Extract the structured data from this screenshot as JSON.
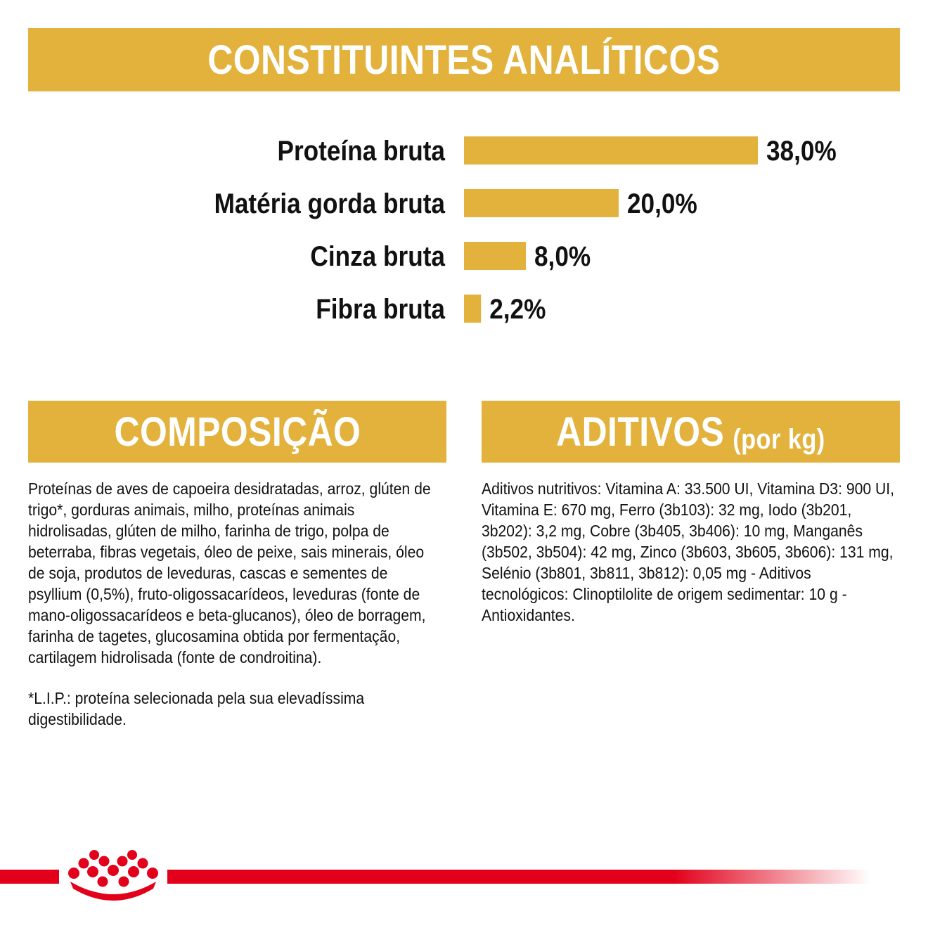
{
  "headers": {
    "analiticos": "CONSTITUINTES ANALÍTICOS",
    "composicao": "COMPOSIÇÃO",
    "aditivos_main": "ADITIVOS",
    "aditivos_suffix": "(por kg)"
  },
  "chart_data": {
    "type": "bar",
    "orientation": "horizontal",
    "title": "CONSTITUINTES ANALÍTICOS",
    "categories": [
      "Proteína bruta",
      "Matéria gorda bruta",
      "Cinza bruta",
      "Fibra bruta"
    ],
    "values": [
      38.0,
      20.0,
      8.0,
      2.2
    ],
    "value_labels": [
      "38,0%",
      "20,0%",
      "8,0%",
      "2,2%"
    ],
    "unit": "%",
    "xlim": [
      0,
      38
    ],
    "grid": false,
    "legend": "none",
    "bar_color": "#e3b23c"
  },
  "composicao": {
    "text": "Proteínas de aves de capoeira desidratadas, arroz, glúten de trigo*, gorduras animais, milho, proteínas animais hidrolisadas, glúten de milho, farinha de trigo, polpa de beterraba, fibras vegetais, óleo de peixe, sais minerais, óleo de soja, produtos de leveduras, cascas e sementes de psyllium (0,5%), fruto-oligossacarídeos, leveduras (fonte de mano-oligossacarídeos e beta-glucanos), óleo de borragem, farinha de tagetes, glucosamina obtida por fermentação, cartilagem hidrolisada (fonte de condroitina).",
    "note": "*L.I.P.: proteína selecionada pela sua elevadíssima digestibilidade."
  },
  "aditivos": {
    "text": "Aditivos nutritivos: Vitamina A: 33.500 UI, Vitamina D3: 900 UI, Vitamina E: 670 mg, Ferro (3b103): 32 mg, Iodo (3b201, 3b202): 3,2 mg, Cobre (3b405, 3b406): 10 mg, Manganês (3b502, 3b504): 42 mg, Zinco (3b603, 3b605, 3b606): 131 mg, Selénio (3b801, 3b811, 3b812): 0,05 mg - Aditivos tecnológicos: Clinoptilolite de origem sedimentar: 10 g - Antioxidantes."
  },
  "colors": {
    "accent": "#e3b23c",
    "brand_red": "#e2001a",
    "text": "#111111"
  },
  "icons": {
    "brand_logo": "crown-logo-icon"
  }
}
